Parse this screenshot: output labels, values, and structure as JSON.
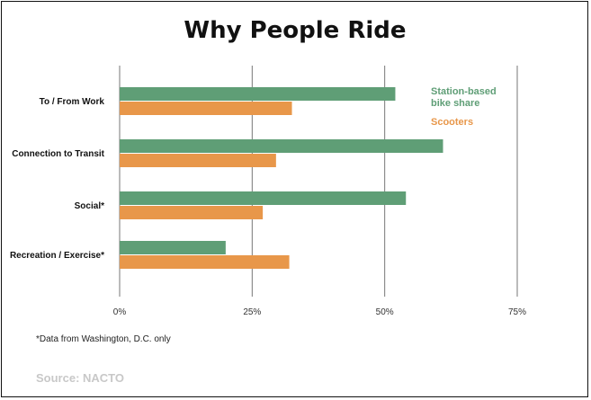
{
  "chart_data": {
    "type": "bar",
    "orientation": "horizontal",
    "title": "Why People Ride",
    "categories": [
      "To / From Work",
      "Connection to Transit",
      "Social*",
      "Recreation / Exercise*"
    ],
    "series": [
      {
        "name": "Station-based bike share",
        "legend_lines": [
          "Station-based",
          "bike share"
        ],
        "color": "#5f9e76",
        "values": [
          52,
          61,
          54,
          20
        ]
      },
      {
        "name": "Scooters",
        "legend_lines": [
          "Scooters"
        ],
        "color": "#e8974a",
        "values": [
          32.5,
          29.5,
          27,
          32
        ]
      }
    ],
    "x_ticks": [
      0,
      25,
      50,
      75
    ],
    "x_tick_labels": [
      "0%",
      "25%",
      "50%",
      "75%"
    ],
    "xlim": [
      0,
      75
    ],
    "grid": "vertical",
    "legend_position": "right"
  },
  "note": "*Data from Washington, D.C. only",
  "source": "Source: NACTO",
  "colors": {
    "gridline": "#777777",
    "text": "#111111"
  }
}
